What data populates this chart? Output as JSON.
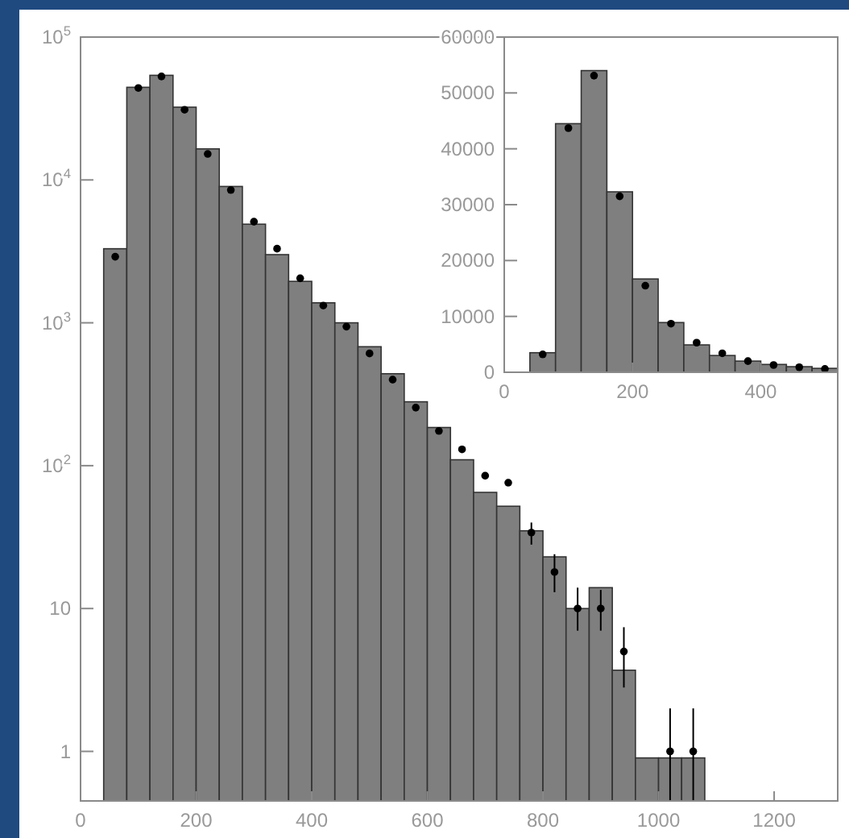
{
  "chart_data": [
    {
      "type": "histogram",
      "log": "y",
      "marker": "circle",
      "bins": [
        40,
        80,
        120,
        160,
        200,
        240,
        280,
        320,
        360,
        400,
        440,
        480,
        520,
        560,
        600,
        640,
        680,
        720,
        760,
        800,
        840,
        880,
        920,
        960,
        1000,
        1040,
        1080
      ],
      "xlim": [
        0,
        1310
      ],
      "ylim": [
        0.45,
        100000
      ],
      "xticks": [
        0,
        200,
        400,
        600,
        800,
        1000,
        1200
      ],
      "yticks": [
        {
          "value": 1,
          "label": "1"
        },
        {
          "value": 10,
          "label": "10"
        },
        {
          "value": 100,
          "label": "10$^{2}$"
        },
        {
          "value": 1000,
          "label": "10$^{3}$"
        },
        {
          "value": 10000,
          "label": "10$^{4}$"
        },
        {
          "value": 100000,
          "label": "10$^{5}$"
        }
      ],
      "series": [
        {
          "color": "#7f7f7f",
          "values": [
            3300,
            44500,
            54000,
            32300,
            16500,
            9000,
            4900,
            3000,
            1950,
            1380,
            1000,
            680,
            440,
            280,
            185,
            110,
            65,
            52,
            35,
            23,
            10,
            14,
            3.7,
            0.9,
            0.9,
            0.9
          ]
        },
        {
          "type": "scatter",
          "color": "#000000",
          "x": [
            60,
            100,
            140,
            180,
            220,
            260,
            300,
            340,
            380,
            420,
            460,
            500,
            540,
            580,
            620,
            660,
            700,
            740,
            780,
            820,
            860,
            900,
            940,
            1020,
            1060
          ],
          "values": [
            2900,
            44000,
            53000,
            31000,
            15200,
            8500,
            5100,
            3300,
            2050,
            1320,
            940,
            610,
            400,
            255,
            175,
            130,
            85,
            76,
            34,
            18,
            10,
            10,
            5,
            1,
            1
          ],
          "errors": [
            null,
            null,
            null,
            null,
            null,
            null,
            null,
            null,
            null,
            null,
            null,
            null,
            null,
            null,
            null,
            null,
            null,
            null,
            [
              28,
              40
            ],
            [
              13,
              24
            ],
            [
              7,
              14
            ],
            [
              7,
              13.5
            ],
            [
              2.8,
              7.4
            ],
            [
              0.45,
              2
            ],
            [
              0.45,
              2
            ]
          ]
        }
      ]
    },
    {
      "type": "histogram",
      "marker": "circle",
      "bins": [
        40,
        80,
        120,
        160,
        200,
        240,
        280,
        320,
        360,
        400,
        440,
        480,
        520
      ],
      "xlim": [
        0,
        520
      ],
      "ylim": [
        0,
        60000
      ],
      "xticks": [
        0,
        200,
        400
      ],
      "yticks": [
        0,
        10000,
        20000,
        30000,
        40000,
        50000,
        60000
      ],
      "series": [
        {
          "color": "#7f7f7f",
          "values": [
            3500,
            44500,
            54000,
            32300,
            16700,
            8900,
            4900,
            3000,
            2000,
            1400,
            1000,
            700
          ]
        },
        {
          "type": "scatter",
          "color": "#000000",
          "x": [
            60,
            100,
            140,
            180,
            220,
            260,
            300,
            340,
            380,
            420,
            460,
            500
          ],
          "values": [
            3200,
            43700,
            53100,
            31500,
            15500,
            8700,
            5300,
            3400,
            2000,
            1300,
            900,
            600
          ]
        }
      ]
    }
  ]
}
